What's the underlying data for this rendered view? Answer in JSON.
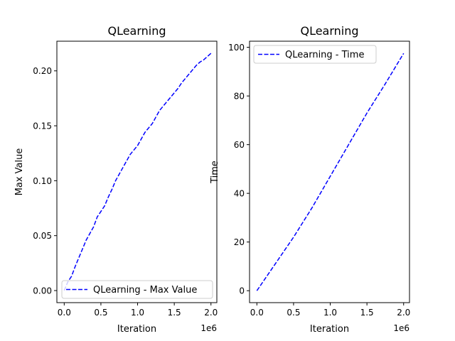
{
  "chart_data": [
    {
      "type": "line",
      "title": "QLearning",
      "xlabel": "Iteration",
      "ylabel": "Max Value",
      "x_offset_label": "1e6",
      "xlim": [
        -0.1,
        2.08
      ],
      "ylim": [
        -0.011,
        0.227
      ],
      "xticks": [
        0.0,
        0.5,
        1.0,
        1.5,
        2.0
      ],
      "xtick_labels": [
        "0.0",
        "0.5",
        "1.0",
        "1.5",
        "2.0"
      ],
      "yticks": [
        0.0,
        0.05,
        0.1,
        0.15,
        0.2
      ],
      "ytick_labels": [
        "0.00",
        "0.05",
        "0.10",
        "0.15",
        "0.20"
      ],
      "grid": false,
      "legend_position": "lower-right",
      "series": [
        {
          "name": "QLearning - Max Value",
          "color": "#0000ff",
          "line_style": "dashed",
          "x": [
            0.0,
            0.05,
            0.1,
            0.15,
            0.2,
            0.25,
            0.3,
            0.35,
            0.4,
            0.45,
            0.5,
            0.55,
            0.6,
            0.65,
            0.7,
            0.75,
            0.8,
            0.85,
            0.9,
            0.95,
            1.0,
            1.05,
            1.1,
            1.15,
            1.2,
            1.25,
            1.3,
            1.35,
            1.4,
            1.45,
            1.5,
            1.55,
            1.6,
            1.65,
            1.7,
            1.75,
            1.8,
            1.85,
            1.9,
            1.95,
            2.0
          ],
          "y": [
            0.0,
            0.008,
            0.013,
            0.022,
            0.03,
            0.038,
            0.046,
            0.052,
            0.058,
            0.067,
            0.072,
            0.077,
            0.085,
            0.092,
            0.1,
            0.106,
            0.112,
            0.118,
            0.124,
            0.128,
            0.132,
            0.138,
            0.144,
            0.148,
            0.152,
            0.158,
            0.164,
            0.168,
            0.172,
            0.176,
            0.18,
            0.184,
            0.189,
            0.193,
            0.197,
            0.201,
            0.205,
            0.208,
            0.21,
            0.213,
            0.216
          ]
        }
      ]
    },
    {
      "type": "line",
      "title": "QLearning",
      "xlabel": "Iteration",
      "ylabel": "Time",
      "x_offset_label": "1e6",
      "xlim": [
        -0.1,
        2.08
      ],
      "ylim": [
        -4.9,
        102.5
      ],
      "xticks": [
        0.0,
        0.5,
        1.0,
        1.5,
        2.0
      ],
      "xtick_labels": [
        "0.0",
        "0.5",
        "1.0",
        "1.5",
        "2.0"
      ],
      "yticks": [
        0,
        20,
        40,
        60,
        80,
        100
      ],
      "ytick_labels": [
        "0",
        "20",
        "40",
        "60",
        "80",
        "100"
      ],
      "grid": false,
      "legend_position": "upper-left",
      "series": [
        {
          "name": "QLearning - Time",
          "color": "#0000ff",
          "line_style": "dashed",
          "x": [
            0.0,
            0.25,
            0.5,
            0.75,
            1.0,
            1.25,
            1.5,
            1.75,
            2.0
          ],
          "y": [
            0.0,
            11.0,
            22.0,
            34.0,
            47.0,
            60.0,
            73.0,
            85.0,
            97.5
          ]
        }
      ]
    }
  ]
}
